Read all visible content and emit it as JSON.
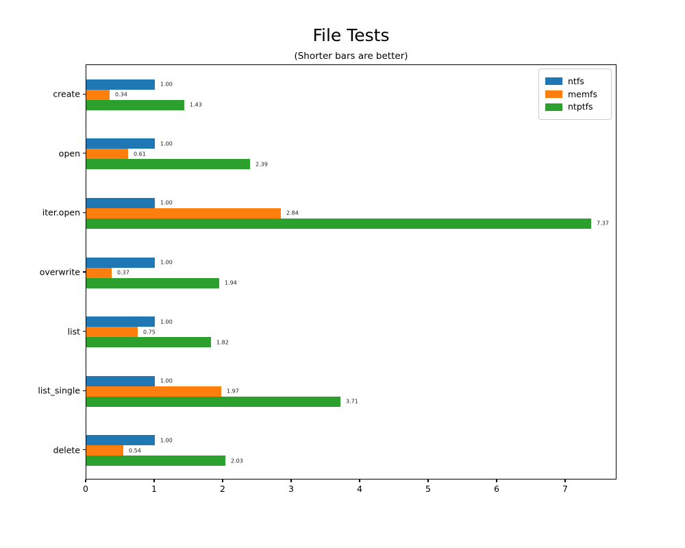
{
  "chart_data": {
    "type": "bar",
    "orientation": "horizontal",
    "title": "File Tests",
    "subtitle": "(Shorter bars are better)",
    "categories": [
      "create",
      "open",
      "iter.open",
      "overwrite",
      "list",
      "list_single",
      "delete"
    ],
    "series": [
      {
        "name": "ntfs",
        "color": "#1f77b4",
        "values": [
          1.0,
          1.0,
          1.0,
          1.0,
          1.0,
          1.0,
          1.0
        ],
        "labels": [
          "1.00",
          "1.00",
          "1.00",
          "1.00",
          "1.00",
          "1.00",
          "1.00"
        ]
      },
      {
        "name": "memfs",
        "color": "#ff7f0e",
        "values": [
          0.34,
          0.61,
          2.84,
          0.37,
          0.75,
          1.97,
          0.54
        ],
        "labels": [
          "0.34",
          "0.61",
          "2.84",
          "0.37",
          "0.75",
          "1.97",
          "0.54"
        ]
      },
      {
        "name": "ntptfs",
        "color": "#2ca02c",
        "values": [
          1.43,
          2.39,
          7.37,
          1.94,
          1.82,
          3.71,
          2.03
        ],
        "labels": [
          "1.43",
          "2.39",
          "7.37",
          "1.94",
          "1.82",
          "3.71",
          "2.03"
        ]
      }
    ],
    "x_ticks": [
      "0",
      "1",
      "2",
      "3",
      "4",
      "5",
      "6",
      "7"
    ],
    "xlim": [
      0,
      7.75
    ],
    "grid": false,
    "legend_position": "upper-right"
  }
}
